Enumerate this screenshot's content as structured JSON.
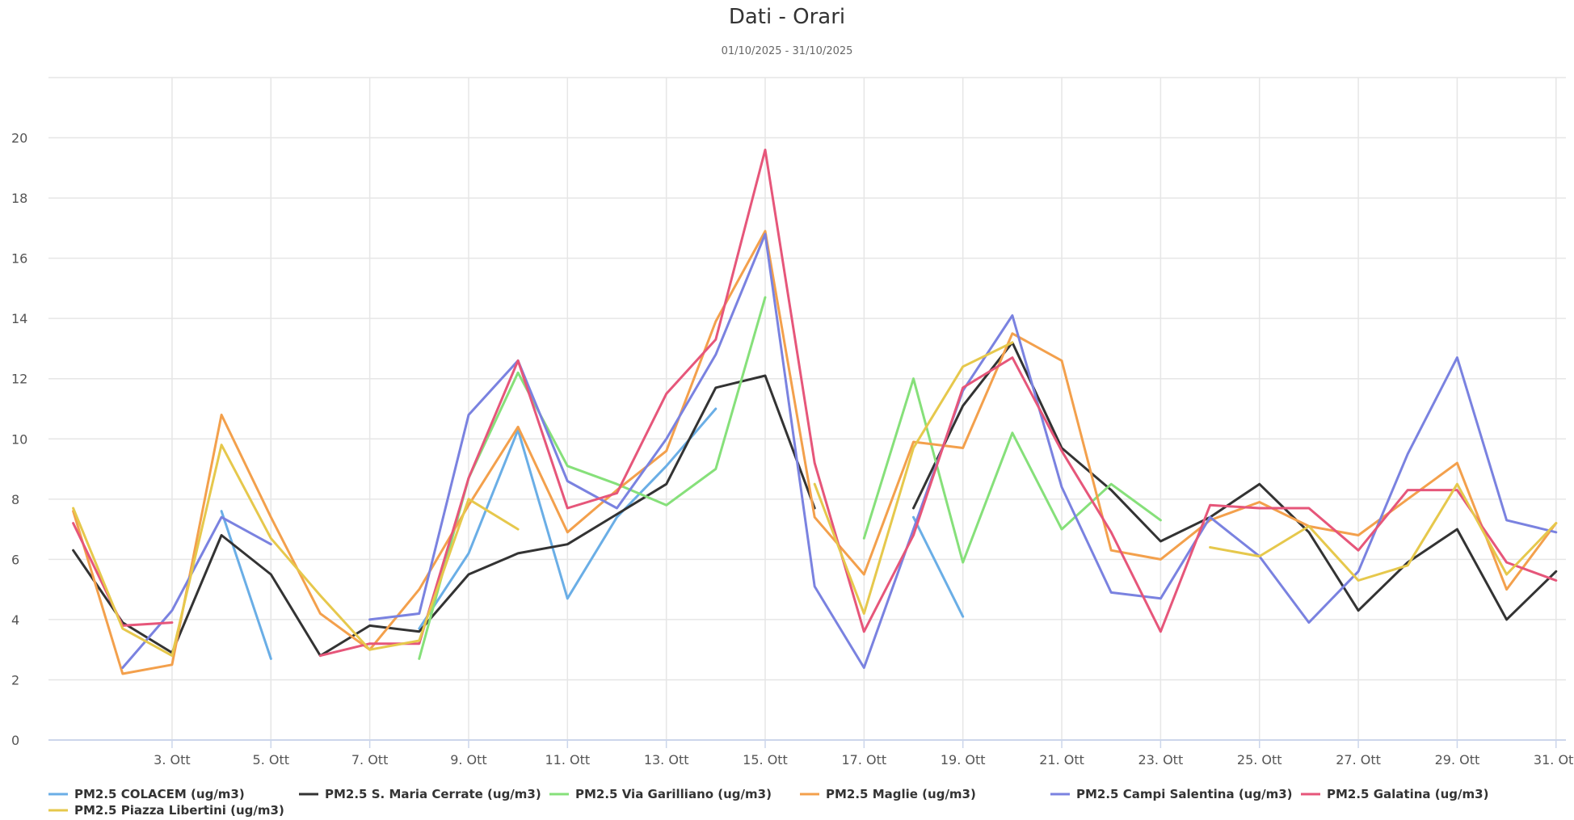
{
  "chart_data": {
    "type": "line",
    "title": "Dati - Orari",
    "subtitle": "01/10/2025 - 31/10/2025",
    "xlabel": "",
    "ylabel": "",
    "x": [
      1,
      2,
      3,
      4,
      5,
      6,
      7,
      8,
      9,
      10,
      11,
      12,
      13,
      14,
      15,
      16,
      17,
      18,
      19,
      20,
      21,
      22,
      23,
      24,
      25,
      26,
      27,
      28,
      29,
      30,
      31
    ],
    "xticks": [
      {
        "x": 3,
        "label": "3. Ott"
      },
      {
        "x": 5,
        "label": "5. Ott"
      },
      {
        "x": 7,
        "label": "7. Ott"
      },
      {
        "x": 9,
        "label": "9. Ott"
      },
      {
        "x": 11,
        "label": "11. Ott"
      },
      {
        "x": 13,
        "label": "13. Ott"
      },
      {
        "x": 15,
        "label": "15. Ott"
      },
      {
        "x": 17,
        "label": "17. Ott"
      },
      {
        "x": 19,
        "label": "19. Ott"
      },
      {
        "x": 21,
        "label": "21. Ott"
      },
      {
        "x": 23,
        "label": "23. Ott"
      },
      {
        "x": 25,
        "label": "25. Ott"
      },
      {
        "x": 27,
        "label": "27. Ott"
      },
      {
        "x": 29,
        "label": "29. Ott"
      },
      {
        "x": 31,
        "label": "31. Ott"
      }
    ],
    "ylim": [
      0,
      22
    ],
    "yticks": [
      0,
      2,
      4,
      6,
      8,
      10,
      12,
      14,
      16,
      18,
      20
    ],
    "grid": true,
    "legend_position": "bottom",
    "series": [
      {
        "name": "PM2.5 COLACEM (ug/m3)",
        "color": "#6aaee6",
        "values": [
          null,
          null,
          null,
          7.6,
          2.7,
          null,
          null,
          3.7,
          6.2,
          10.3,
          4.7,
          7.4,
          9.1,
          11.0,
          null,
          null,
          null,
          7.4,
          4.1,
          null,
          null,
          null,
          null,
          null,
          null,
          null,
          null,
          null,
          null,
          null,
          null
        ]
      },
      {
        "name": "PM2.5 S. Maria Cerrate (ug/m3)",
        "color": "#333333",
        "values": [
          6.3,
          3.9,
          2.9,
          6.8,
          5.5,
          2.8,
          3.8,
          3.6,
          5.5,
          6.2,
          6.5,
          7.5,
          8.5,
          11.7,
          12.1,
          7.7,
          null,
          7.7,
          11.1,
          13.2,
          9.7,
          8.3,
          6.6,
          7.4,
          8.5,
          6.9,
          4.3,
          5.9,
          7.0,
          4.0,
          5.6
        ]
      },
      {
        "name": "PM2.5 Via Garilliano (ug/m3)",
        "color": "#86e07a",
        "values": [
          null,
          null,
          null,
          null,
          null,
          null,
          null,
          2.7,
          8.7,
          12.2,
          9.1,
          8.5,
          7.8,
          9.0,
          14.7,
          null,
          6.7,
          12.0,
          5.9,
          10.2,
          7.0,
          8.5,
          7.3,
          null,
          null,
          null,
          null,
          null,
          null,
          null,
          null
        ]
      },
      {
        "name": "PM2.5 Maglie (ug/m3)",
        "color": "#f3a04c",
        "values": [
          7.6,
          2.2,
          2.5,
          10.8,
          7.4,
          4.2,
          3.0,
          5.0,
          7.8,
          10.4,
          6.9,
          8.3,
          9.6,
          13.9,
          16.9,
          7.4,
          5.5,
          9.9,
          9.7,
          13.5,
          12.6,
          6.3,
          6.0,
          7.3,
          7.9,
          7.1,
          6.8,
          8.0,
          9.2,
          5.0,
          7.2
        ]
      },
      {
        "name": "PM2.5 Campi Salentina (ug/m3)",
        "color": "#7a82e0",
        "values": [
          null,
          2.4,
          4.3,
          7.4,
          6.5,
          null,
          4.0,
          4.2,
          10.8,
          12.6,
          8.6,
          7.7,
          10.0,
          12.8,
          16.8,
          5.1,
          2.4,
          7.0,
          11.6,
          14.1,
          8.4,
          4.9,
          4.7,
          7.4,
          6.1,
          3.9,
          5.6,
          9.5,
          12.7,
          7.3,
          6.9
        ]
      },
      {
        "name": "PM2.5 Galatina (ug/m3)",
        "color": "#e6567a",
        "values": [
          7.2,
          3.8,
          3.9,
          null,
          null,
          2.8,
          3.2,
          3.2,
          8.7,
          12.6,
          7.7,
          8.2,
          11.5,
          13.3,
          19.6,
          9.2,
          3.6,
          6.8,
          11.7,
          12.7,
          9.6,
          6.9,
          3.6,
          7.8,
          7.7,
          7.7,
          6.3,
          8.3,
          8.3,
          5.9,
          5.3
        ]
      },
      {
        "name": "PM2.5 Piazza Libertini (ug/m3)",
        "color": "#e6c84c",
        "values": [
          7.7,
          3.7,
          2.8,
          9.8,
          6.7,
          4.8,
          3.0,
          3.3,
          8.0,
          7.0,
          null,
          null,
          null,
          null,
          null,
          8.5,
          4.2,
          9.7,
          12.4,
          13.2,
          null,
          null,
          null,
          6.4,
          6.1,
          7.1,
          5.3,
          5.8,
          8.5,
          5.5,
          7.2
        ]
      }
    ]
  }
}
